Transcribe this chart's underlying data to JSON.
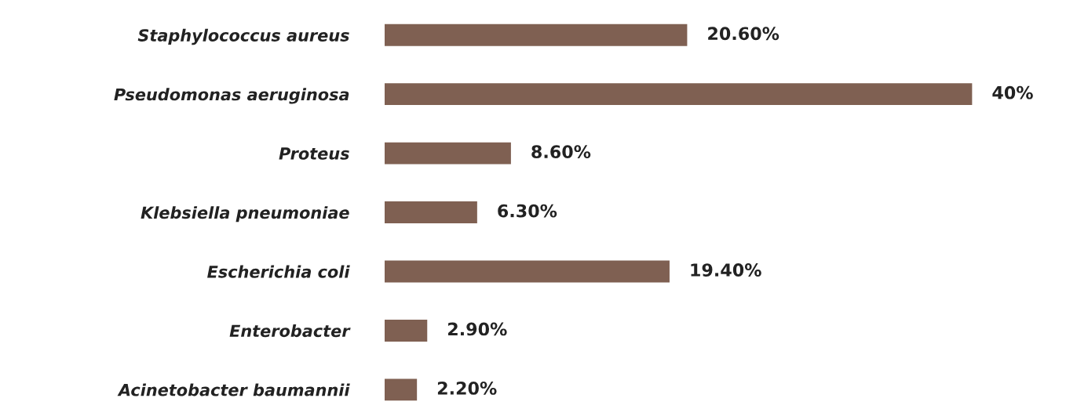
{
  "chart_data": {
    "type": "bar",
    "orientation": "horizontal",
    "categories": [
      "Staphylococcus aureus",
      "Pseudomonas aeruginosa",
      "Proteus",
      "Klebsiella pneumoniae",
      "Escherichia coli",
      "Enterobacter",
      "Acinetobacter baumannii"
    ],
    "values": [
      20.6,
      40,
      8.6,
      6.3,
      19.4,
      2.9,
      2.2
    ],
    "value_labels": [
      "20.60%",
      "40%",
      "8.60%",
      "6.30%",
      "19.40%",
      "2.90%",
      "2.20%"
    ],
    "color": "#7f6052",
    "grid": false,
    "legend": false,
    "tick_labels": "y"
  }
}
